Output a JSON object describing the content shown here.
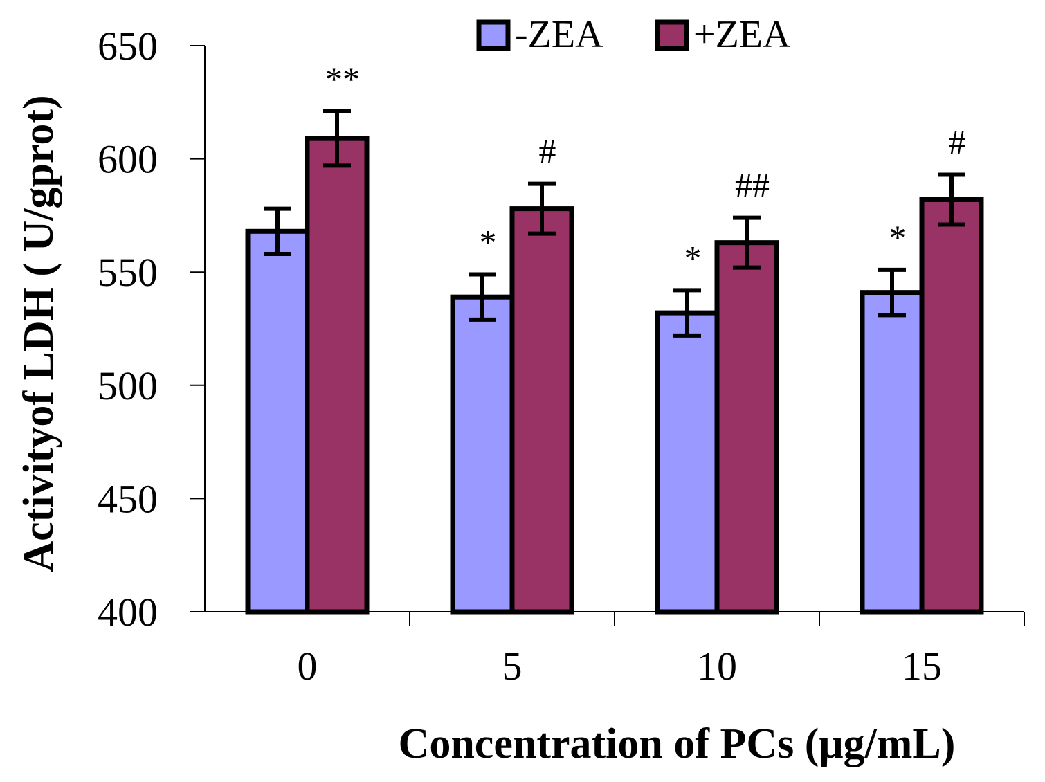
{
  "chart_data": {
    "type": "bar",
    "title": "",
    "xlabel": "Concentration of  PCs (μg/mL)",
    "ylabel": "Activityof LDH ( U/gprot)",
    "ylim": [
      400,
      650
    ],
    "yticks": [
      400,
      450,
      500,
      550,
      600,
      650
    ],
    "ytick_labels": [
      "400",
      "450",
      "500",
      "550",
      "600",
      "650"
    ],
    "categories": [
      "0",
      "5",
      "10",
      "15"
    ],
    "grid": false,
    "legend_position": "top-center",
    "series": [
      {
        "name": "-ZEA",
        "color": "#9999FF",
        "values": [
          568,
          539,
          532,
          541
        ],
        "errors": [
          10,
          10,
          10,
          10
        ],
        "annotations": [
          "",
          "*",
          "*",
          "*"
        ]
      },
      {
        "name": "+ZEA",
        "color": "#993366",
        "values": [
          609,
          578,
          563,
          582
        ],
        "errors": [
          12,
          11,
          11,
          11
        ],
        "annotations": [
          "**",
          "#",
          "##",
          "#"
        ]
      }
    ]
  }
}
